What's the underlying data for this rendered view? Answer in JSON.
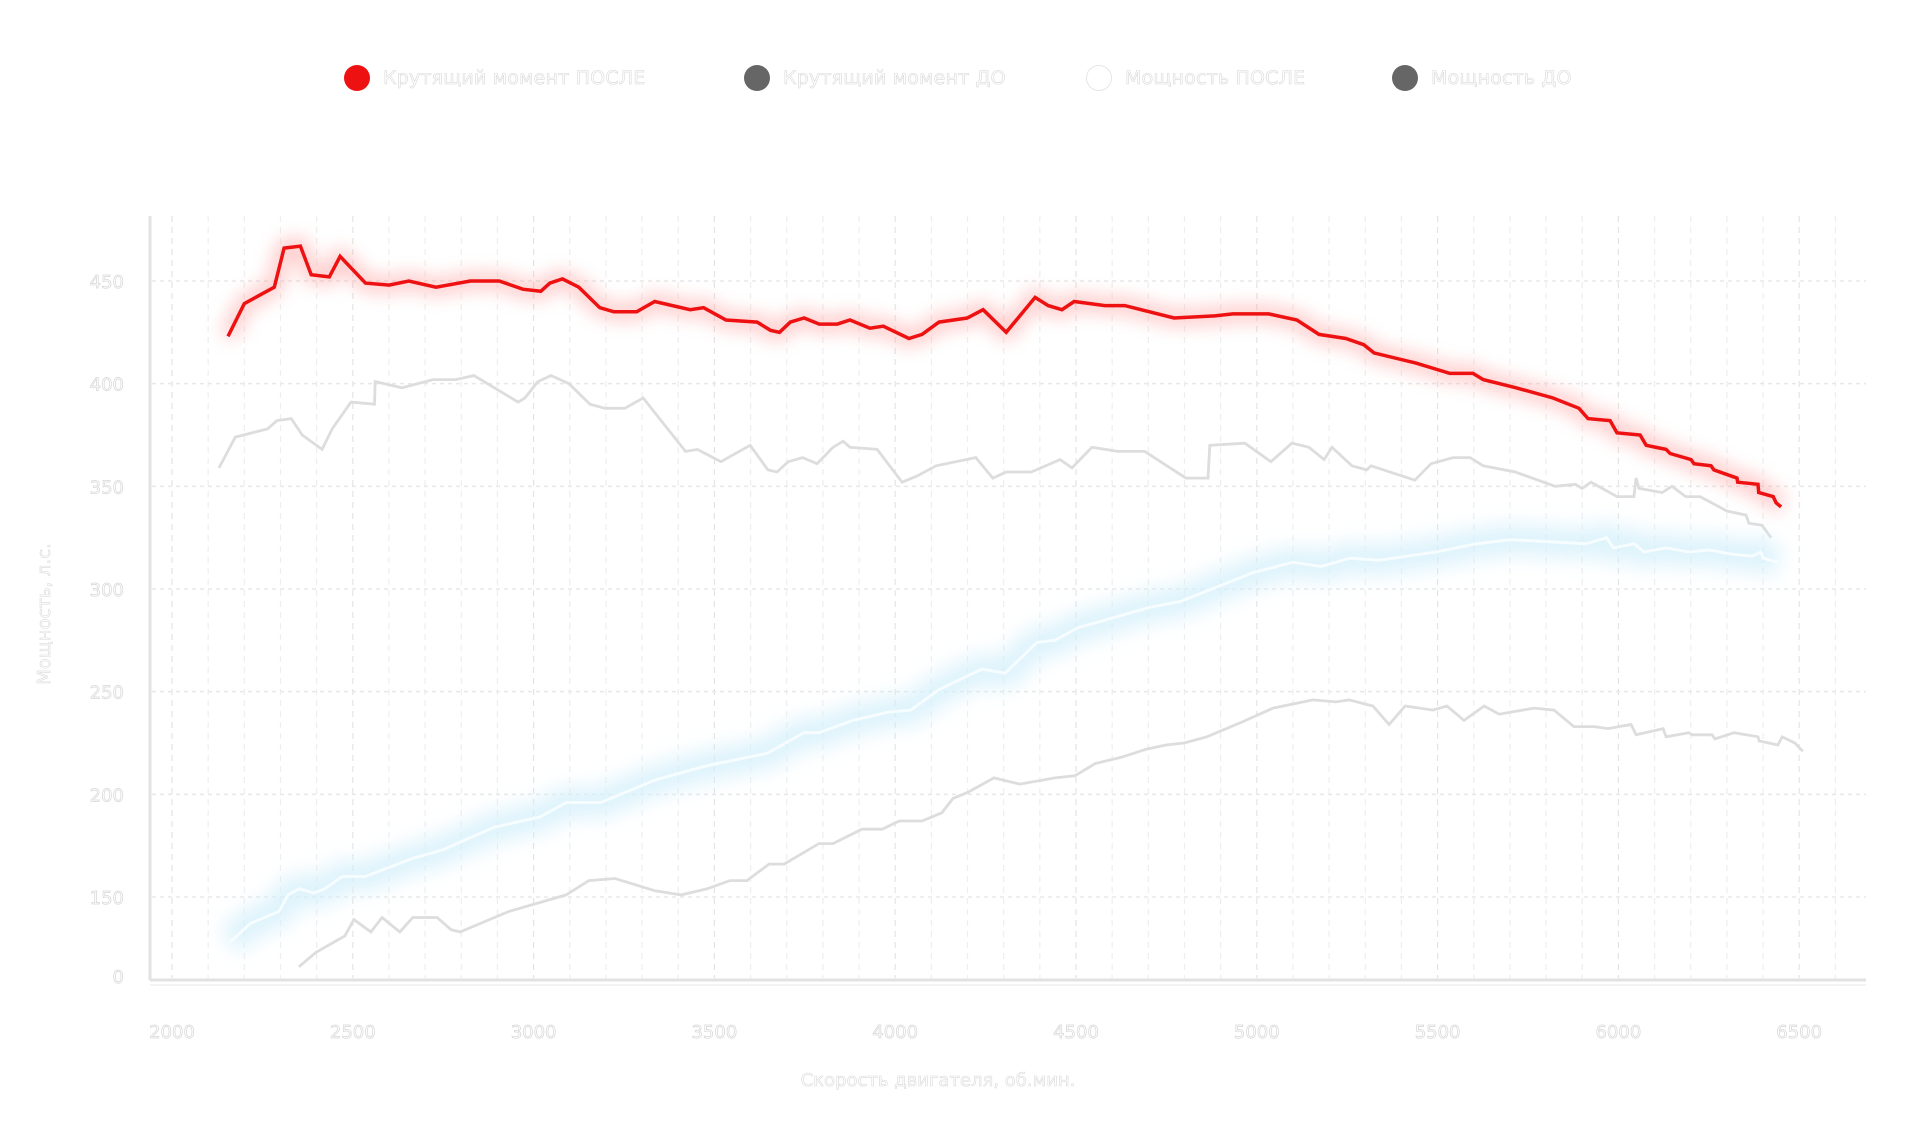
{
  "legend": {
    "items": [
      {
        "label": "Крутящий момент ПОСЛЕ",
        "color": "#ee1111",
        "style": "filled"
      },
      {
        "label": "Крутящий момент ДО",
        "color": "#666666",
        "style": "filled"
      },
      {
        "label": "Мощность ПОСЛЕ",
        "color": "#ffffff",
        "style": "outline"
      },
      {
        "label": "Мощность ДО",
        "color": "#666666",
        "style": "filled"
      }
    ]
  },
  "chart_data": {
    "type": "line",
    "title": "",
    "xlabel": "Скорость двигателя, об.мин.",
    "ylabel": "Мощность, л.с.",
    "xlim": [
      1900,
      6580
    ],
    "ylim": [
      110,
      480
    ],
    "x_ticks": [
      2000,
      2500,
      3000,
      3500,
      4000,
      4500,
      5000,
      5500,
      6000,
      6500
    ],
    "x_tick_labels": [
      "2000",
      "2500",
      "3000",
      "3500",
      "4000",
      "4500",
      "5000",
      "5500",
      "6000",
      "6500"
    ],
    "y_ticks": [
      150,
      200,
      250,
      300,
      350,
      400,
      450
    ],
    "y_tick_labels": [
      "150",
      "200",
      "250",
      "300",
      "350",
      "400",
      "450"
    ],
    "y_bottom_label": "0",
    "grid": true,
    "legend_position": "top-center",
    "series": [
      {
        "name": "Крутящий момент ПОСЛЕ",
        "color": "#ee1111",
        "glow": "#ff9a9a",
        "points": [
          [
            2155,
            423
          ],
          [
            2200,
            439
          ],
          [
            2283,
            447
          ],
          [
            2310,
            466
          ],
          [
            2355,
            467
          ],
          [
            2385,
            453
          ],
          [
            2435,
            452
          ],
          [
            2465,
            462
          ],
          [
            2535,
            449
          ],
          [
            2600,
            448
          ],
          [
            2655,
            450
          ],
          [
            2730,
            447
          ],
          [
            2825,
            450
          ],
          [
            2905,
            450
          ],
          [
            2970,
            446
          ],
          [
            3020,
            445
          ],
          [
            3045,
            449
          ],
          [
            3080,
            451
          ],
          [
            3125,
            447
          ],
          [
            3183,
            437
          ],
          [
            3222,
            435
          ],
          [
            3285,
            435
          ],
          [
            3335,
            440
          ],
          [
            3433,
            436
          ],
          [
            3470,
            437
          ],
          [
            3532,
            431
          ],
          [
            3618,
            430
          ],
          [
            3655,
            426
          ],
          [
            3680,
            425
          ],
          [
            3710,
            430
          ],
          [
            3748,
            432
          ],
          [
            3790,
            429
          ],
          [
            3840,
            429
          ],
          [
            3875,
            431
          ],
          [
            3930,
            427
          ],
          [
            3967,
            428
          ],
          [
            4038,
            422
          ],
          [
            4074,
            424
          ],
          [
            4121,
            430
          ],
          [
            4199,
            432
          ],
          [
            4243,
            436
          ],
          [
            4307,
            425
          ],
          [
            4387,
            442
          ],
          [
            4423,
            438
          ],
          [
            4461,
            436
          ],
          [
            4495,
            440
          ],
          [
            4580,
            438
          ],
          [
            4635,
            438
          ],
          [
            4771,
            432
          ],
          [
            4884,
            433
          ],
          [
            4934,
            434
          ],
          [
            5033,
            434
          ],
          [
            5111,
            431
          ],
          [
            5172,
            424
          ],
          [
            5246,
            422
          ],
          [
            5296,
            419
          ],
          [
            5324,
            415
          ],
          [
            5440,
            410
          ],
          [
            5534,
            405
          ],
          [
            5598,
            405
          ],
          [
            5626,
            402
          ],
          [
            5717,
            398
          ],
          [
            5819,
            393
          ],
          [
            5891,
            388
          ],
          [
            5916,
            383
          ],
          [
            5977,
            382
          ],
          [
            5996,
            376
          ],
          [
            6060,
            375
          ],
          [
            6077,
            370
          ],
          [
            6132,
            368
          ],
          [
            6143,
            366
          ],
          [
            6201,
            363
          ],
          [
            6209,
            361
          ],
          [
            6256,
            360
          ],
          [
            6264,
            358
          ],
          [
            6328,
            354
          ],
          [
            6330,
            352
          ],
          [
            6386,
            351
          ],
          [
            6388,
            347
          ],
          [
            6428,
            345
          ],
          [
            6436,
            342
          ],
          [
            6450,
            340
          ]
        ]
      },
      {
        "name": "Крутящий момент ДО",
        "color": "#dddddd",
        "glow": null,
        "points": [
          [
            2130,
            359
          ],
          [
            2175,
            374
          ],
          [
            2265,
            378
          ],
          [
            2290,
            382
          ],
          [
            2330,
            383
          ],
          [
            2360,
            375
          ],
          [
            2415,
            368
          ],
          [
            2443,
            378
          ],
          [
            2495,
            391
          ],
          [
            2560,
            390
          ],
          [
            2562,
            401
          ],
          [
            2636,
            398
          ],
          [
            2722,
            402
          ],
          [
            2785,
            402
          ],
          [
            2835,
            404
          ],
          [
            2957,
            391
          ],
          [
            2976,
            393
          ],
          [
            3012,
            401
          ],
          [
            3048,
            404
          ],
          [
            3098,
            400
          ],
          [
            3156,
            390
          ],
          [
            3198,
            388
          ],
          [
            3252,
            388
          ],
          [
            3303,
            393
          ],
          [
            3420,
            367
          ],
          [
            3453,
            368
          ],
          [
            3518,
            362
          ],
          [
            3599,
            370
          ],
          [
            3648,
            358
          ],
          [
            3673,
            357
          ],
          [
            3704,
            362
          ],
          [
            3744,
            364
          ],
          [
            3784,
            361
          ],
          [
            3828,
            369
          ],
          [
            3856,
            372
          ],
          [
            3875,
            369
          ],
          [
            3950,
            368
          ],
          [
            4019,
            352
          ],
          [
            4060,
            355
          ],
          [
            4113,
            360
          ],
          [
            4223,
            364
          ],
          [
            4270,
            354
          ],
          [
            4307,
            357
          ],
          [
            4376,
            357
          ],
          [
            4456,
            363
          ],
          [
            4489,
            359
          ],
          [
            4544,
            369
          ],
          [
            4616,
            367
          ],
          [
            4690,
            367
          ],
          [
            4804,
            354
          ],
          [
            4865,
            354
          ],
          [
            4870,
            370
          ],
          [
            4967,
            371
          ],
          [
            5039,
            362
          ],
          [
            5097,
            371
          ],
          [
            5144,
            369
          ],
          [
            5186,
            363
          ],
          [
            5208,
            369
          ],
          [
            5263,
            360
          ],
          [
            5304,
            358
          ],
          [
            5316,
            360
          ],
          [
            5437,
            353
          ],
          [
            5482,
            361
          ],
          [
            5543,
            364
          ],
          [
            5590,
            364
          ],
          [
            5626,
            360
          ],
          [
            5715,
            357
          ],
          [
            5825,
            350
          ],
          [
            5881,
            351
          ],
          [
            5900,
            349
          ],
          [
            5924,
            352
          ],
          [
            5996,
            345
          ],
          [
            6043,
            345
          ],
          [
            6049,
            354
          ],
          [
            6057,
            349
          ],
          [
            6121,
            347
          ],
          [
            6148,
            350
          ],
          [
            6186,
            345
          ],
          [
            6226,
            345
          ],
          [
            6300,
            338
          ],
          [
            6353,
            336
          ],
          [
            6361,
            332
          ],
          [
            6397,
            331
          ],
          [
            6422,
            325
          ]
        ]
      },
      {
        "name": "Мощность ПОСЛЕ",
        "color": "#ffffff",
        "glow": "#d4f0fb",
        "points": [
          [
            2160,
            128
          ],
          [
            2216,
            137
          ],
          [
            2296,
            143
          ],
          [
            2321,
            151
          ],
          [
            2351,
            154
          ],
          [
            2393,
            152
          ],
          [
            2423,
            154
          ],
          [
            2470,
            160
          ],
          [
            2534,
            160
          ],
          [
            2669,
            169
          ],
          [
            2749,
            173
          ],
          [
            2891,
            184
          ],
          [
            3018,
            189
          ],
          [
            3090,
            196
          ],
          [
            3186,
            196
          ],
          [
            3336,
            207
          ],
          [
            3480,
            214
          ],
          [
            3646,
            220
          ],
          [
            3748,
            230
          ],
          [
            3789,
            230
          ],
          [
            3883,
            236
          ],
          [
            3980,
            240
          ],
          [
            4043,
            241
          ],
          [
            4121,
            251
          ],
          [
            4240,
            261
          ],
          [
            4304,
            259
          ],
          [
            4392,
            274
          ],
          [
            4442,
            275
          ],
          [
            4503,
            281
          ],
          [
            4702,
            291
          ],
          [
            4790,
            294
          ],
          [
            4990,
            308
          ],
          [
            5100,
            313
          ],
          [
            5178,
            311
          ],
          [
            5258,
            315
          ],
          [
            5338,
            314
          ],
          [
            5496,
            318
          ],
          [
            5607,
            322
          ],
          [
            5703,
            324
          ],
          [
            5814,
            323
          ],
          [
            5911,
            322
          ],
          [
            5967,
            325
          ],
          [
            5986,
            320
          ],
          [
            6044,
            322
          ],
          [
            6071,
            318
          ],
          [
            6132,
            320
          ],
          [
            6195,
            318
          ],
          [
            6251,
            319
          ],
          [
            6314,
            317
          ],
          [
            6370,
            316
          ],
          [
            6394,
            318
          ],
          [
            6400,
            315
          ],
          [
            6441,
            313
          ]
        ]
      },
      {
        "name": "Мощность ДО",
        "color": "#dddddd",
        "glow": null,
        "points": [
          [
            2351,
            116
          ],
          [
            2398,
            123
          ],
          [
            2478,
            131
          ],
          [
            2503,
            139
          ],
          [
            2550,
            133
          ],
          [
            2581,
            140
          ],
          [
            2630,
            133
          ],
          [
            2666,
            140
          ],
          [
            2733,
            140
          ],
          [
            2772,
            134
          ],
          [
            2797,
            133
          ],
          [
            2932,
            143
          ],
          [
            3090,
            151
          ],
          [
            3153,
            158
          ],
          [
            3225,
            159
          ],
          [
            3336,
            153
          ],
          [
            3408,
            151
          ],
          [
            3480,
            154
          ],
          [
            3543,
            158
          ],
          [
            3590,
            158
          ],
          [
            3651,
            166
          ],
          [
            3693,
            166
          ],
          [
            3789,
            176
          ],
          [
            3828,
            176
          ],
          [
            3908,
            183
          ],
          [
            3964,
            183
          ],
          [
            4011,
            187
          ],
          [
            4074,
            187
          ],
          [
            4129,
            191
          ],
          [
            4160,
            198
          ],
          [
            4201,
            201
          ],
          [
            4273,
            208
          ],
          [
            4345,
            205
          ],
          [
            4442,
            208
          ],
          [
            4497,
            209
          ],
          [
            4553,
            215
          ],
          [
            4624,
            218
          ],
          [
            4694,
            222
          ],
          [
            4749,
            224
          ],
          [
            4799,
            225
          ],
          [
            4862,
            228
          ],
          [
            4956,
            235
          ],
          [
            5045,
            242
          ],
          [
            5155,
            246
          ],
          [
            5219,
            245
          ],
          [
            5255,
            246
          ],
          [
            5321,
            243
          ],
          [
            5366,
            234
          ],
          [
            5410,
            243
          ],
          [
            5487,
            241
          ],
          [
            5526,
            243
          ],
          [
            5573,
            236
          ],
          [
            5629,
            243
          ],
          [
            5670,
            239
          ],
          [
            5767,
            242
          ],
          [
            5822,
            241
          ],
          [
            5877,
            233
          ],
          [
            5933,
            233
          ],
          [
            5971,
            232
          ],
          [
            6035,
            234
          ],
          [
            6049,
            229
          ],
          [
            6124,
            232
          ],
          [
            6132,
            228
          ],
          [
            6195,
            230
          ],
          [
            6204,
            229
          ],
          [
            6259,
            229
          ],
          [
            6267,
            227
          ],
          [
            6320,
            230
          ],
          [
            6386,
            228
          ],
          [
            6389,
            226
          ],
          [
            6441,
            224
          ],
          [
            6453,
            228
          ],
          [
            6488,
            225
          ],
          [
            6510,
            221
          ]
        ]
      }
    ]
  }
}
